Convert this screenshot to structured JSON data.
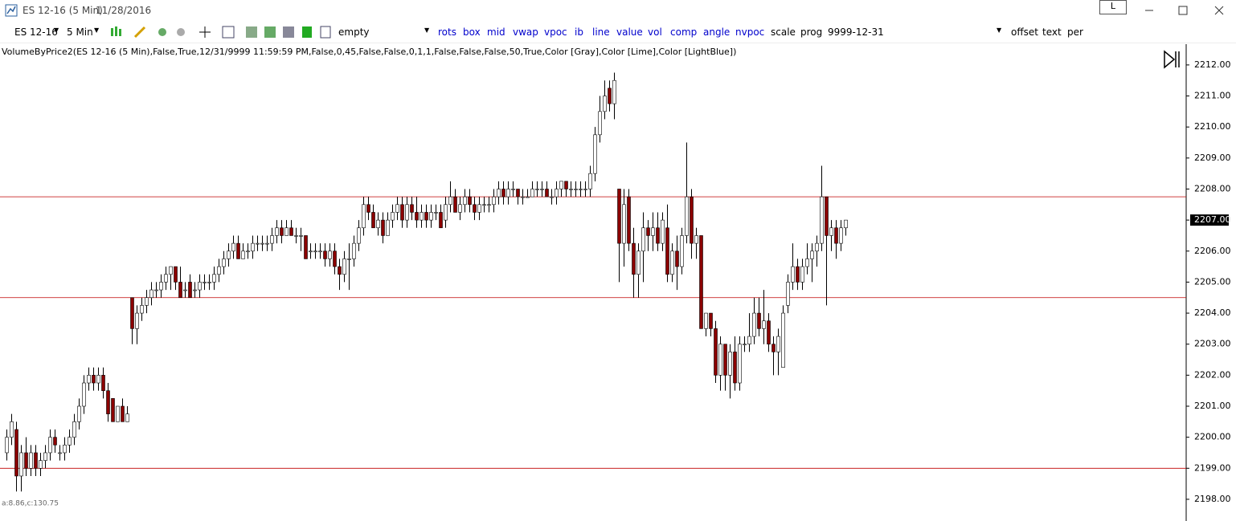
{
  "window": {
    "title": "ES 12-16 (5 Min)",
    "date": "11/28/2016",
    "button": "L"
  },
  "toolbar": {
    "instrument": "ES 12-16",
    "interval": "5 Min",
    "template": "empty",
    "links": [
      "rots",
      "box",
      "mid",
      "vwap",
      "vpoc",
      "ib",
      "line",
      "value",
      "vol",
      "comp",
      "angle",
      "nvpoc"
    ],
    "plain": [
      "scale",
      "prog",
      "9999-12-31"
    ],
    "right": [
      "offset",
      "text",
      "per"
    ]
  },
  "chart_data": {
    "type": "candlestick",
    "indicator": "VolumeByPrice2(ES 12-16 (5 Min),False,True,12/31/9999 11:59:59 PM,False,0,45,False,False,0,1,1,False,False,False,50,True,Color [Gray],Color [Lime],Color [LightBlue])",
    "footer": "a:8.86,c:130.75",
    "ylim": [
      2197.3,
      2212.67
    ],
    "yticks": [
      {
        "value": 2198,
        "label": "2198.00"
      },
      {
        "value": 2199,
        "label": "2199.00"
      },
      {
        "value": 2200,
        "label": "2200.00"
      },
      {
        "value": 2201,
        "label": "2201.00"
      },
      {
        "value": 2202,
        "label": "2202.00"
      },
      {
        "value": 2203,
        "label": "2203.00"
      },
      {
        "value": 2204,
        "label": "2204.00"
      },
      {
        "value": 2205,
        "label": "2205.00"
      },
      {
        "value": 2206,
        "label": "2206.00"
      },
      {
        "value": 2207,
        "label": "2207.00"
      },
      {
        "value": 2208,
        "label": "2208.00"
      },
      {
        "value": 2209,
        "label": "2209.00"
      },
      {
        "value": 2210,
        "label": "2210.00"
      },
      {
        "value": 2211,
        "label": "2211.00"
      },
      {
        "value": 2212,
        "label": "2212.00"
      }
    ],
    "last_price": {
      "value": 2207,
      "label": "2207.00"
    },
    "levels": [
      2207.75,
      2204.5,
      2199
    ],
    "up_color": "#ffffff",
    "down_color": "#8b0000",
    "level_color": "#c00000",
    "candles": [
      [
        2199.5,
        2200.25,
        2199.25,
        2200
      ],
      [
        2200,
        2200.75,
        2199.75,
        2200.5
      ],
      [
        2200.25,
        2200.5,
        2198.25,
        2198.75
      ],
      [
        2198.75,
        2199.75,
        2198.25,
        2199.5
      ],
      [
        2199.5,
        2200,
        2198.75,
        2199
      ],
      [
        2199,
        2199.75,
        2198.75,
        2199.5
      ],
      [
        2199.5,
        2199.75,
        2198.75,
        2199
      ],
      [
        2199,
        2199.5,
        2198.75,
        2199.25
      ],
      [
        2199.25,
        2199.75,
        2199,
        2199.5
      ],
      [
        2199.5,
        2200.25,
        2199.25,
        2200
      ],
      [
        2200,
        2200.25,
        2199.5,
        2199.75
      ],
      [
        2199.5,
        2199.75,
        2199.25,
        2199.5
      ],
      [
        2199.5,
        2200,
        2199.25,
        2199.75
      ],
      [
        2199.75,
        2200.25,
        2199.5,
        2200
      ],
      [
        2200,
        2200.75,
        2199.75,
        2200.5
      ],
      [
        2200.5,
        2201.25,
        2200.25,
        2201
      ],
      [
        2201,
        2202,
        2200.75,
        2201.75
      ],
      [
        2201.75,
        2202.25,
        2201.5,
        2202
      ],
      [
        2202,
        2202.25,
        2201.5,
        2201.75
      ],
      [
        2201.75,
        2202.25,
        2201.5,
        2202
      ],
      [
        2202,
        2202.25,
        2201.25,
        2201.5
      ],
      [
        2201.5,
        2201.75,
        2200.5,
        2200.75
      ],
      [
        2201.25,
        2201.25,
        2200.5,
        2200.5
      ],
      [
        2200.5,
        2201,
        2200.5,
        2201
      ],
      [
        2201,
        2201.25,
        2200.5,
        2200.5
      ],
      [
        2200.5,
        2201,
        2200.5,
        2200.75
      ],
      [
        2204.5,
        2204.5,
        2203,
        2203.5
      ],
      [
        2203.5,
        2204.25,
        2203,
        2204
      ],
      [
        2204,
        2204.5,
        2203.75,
        2204.25
      ],
      [
        2204.25,
        2204.75,
        2204,
        2204.5
      ],
      [
        2204.5,
        2205,
        2204.25,
        2204.75
      ],
      [
        2204.75,
        2205,
        2204.5,
        2204.75
      ],
      [
        2204.75,
        2205.25,
        2204.5,
        2205
      ],
      [
        2205,
        2205.5,
        2204.75,
        2205.25
      ],
      [
        2205.25,
        2205.5,
        2204.75,
        2205.5
      ],
      [
        2205.5,
        2205.5,
        2204.75,
        2205
      ],
      [
        2205,
        2205.5,
        2204.5,
        2204.5
      ],
      [
        2204.75,
        2205,
        2204.5,
        2204.75
      ],
      [
        2205,
        2205.25,
        2204.5,
        2204.5
      ],
      [
        2204.75,
        2205,
        2204.5,
        2204.75
      ],
      [
        2204.75,
        2205.25,
        2204.5,
        2205
      ],
      [
        2205,
        2205.25,
        2204.75,
        2205
      ],
      [
        2205,
        2205.25,
        2204.75,
        2205
      ],
      [
        2205,
        2205.5,
        2204.75,
        2205.25
      ],
      [
        2205.25,
        2205.75,
        2205,
        2205.5
      ],
      [
        2205.5,
        2206,
        2205.25,
        2205.75
      ],
      [
        2205.75,
        2206.25,
        2205.5,
        2206
      ],
      [
        2206,
        2206.5,
        2205.75,
        2206.25
      ],
      [
        2206.25,
        2206.5,
        2205.75,
        2205.75
      ],
      [
        2205.75,
        2206.25,
        2205.75,
        2206
      ],
      [
        2206,
        2206.25,
        2205.75,
        2206
      ],
      [
        2206,
        2206.5,
        2205.75,
        2206.25
      ],
      [
        2206.25,
        2206.5,
        2206,
        2206.25
      ],
      [
        2206.25,
        2206.5,
        2206,
        2206.25
      ],
      [
        2206.25,
        2206.5,
        2206,
        2206.25
      ],
      [
        2206.25,
        2206.75,
        2206,
        2206.5
      ],
      [
        2206.5,
        2207,
        2206.25,
        2206.75
      ],
      [
        2206.75,
        2207,
        2206.25,
        2206.5
      ],
      [
        2206.5,
        2207,
        2206.5,
        2206.75
      ],
      [
        2206.75,
        2207,
        2206.5,
        2206.5
      ],
      [
        2206.5,
        2206.75,
        2206.25,
        2206.5
      ],
      [
        2206.5,
        2206.75,
        2206,
        2206.5
      ],
      [
        2206.5,
        2206.5,
        2205.75,
        2205.75
      ],
      [
        2206,
        2206.25,
        2205.75,
        2206
      ],
      [
        2206,
        2206.25,
        2205.75,
        2206
      ],
      [
        2206,
        2206.25,
        2205.75,
        2206
      ],
      [
        2206,
        2206.25,
        2205.5,
        2205.75
      ],
      [
        2205.75,
        2206.25,
        2205.5,
        2206
      ],
      [
        2206,
        2206.25,
        2205.25,
        2205.5
      ],
      [
        2205.5,
        2205.75,
        2204.75,
        2205.25
      ],
      [
        2205.25,
        2206,
        2205,
        2205.75
      ],
      [
        2205.75,
        2206.25,
        2204.75,
        2205.75
      ],
      [
        2205.75,
        2206.5,
        2205.5,
        2206.25
      ],
      [
        2206.25,
        2207,
        2206,
        2206.75
      ],
      [
        2206.75,
        2207.75,
        2206.5,
        2207.5
      ],
      [
        2207.5,
        2207.75,
        2207,
        2207.25
      ],
      [
        2207.25,
        2207.5,
        2206.75,
        2206.75
      ],
      [
        2206.75,
        2207.25,
        2206.5,
        2207
      ],
      [
        2207,
        2207.25,
        2206.25,
        2206.5
      ],
      [
        2206.5,
        2207.25,
        2206.5,
        2207
      ],
      [
        2207,
        2207.5,
        2206.75,
        2207.25
      ],
      [
        2207.25,
        2207.75,
        2207,
        2207.5
      ],
      [
        2207.5,
        2207.75,
        2206.75,
        2207
      ],
      [
        2207,
        2207.75,
        2206.75,
        2207.5
      ],
      [
        2207.5,
        2207.75,
        2207,
        2207.25
      ],
      [
        2207.25,
        2207.75,
        2206.75,
        2207
      ],
      [
        2207,
        2207.5,
        2206.75,
        2207.25
      ],
      [
        2207.25,
        2207.5,
        2206.75,
        2207
      ],
      [
        2207,
        2207.5,
        2206.75,
        2207.25
      ],
      [
        2207.25,
        2207.5,
        2207,
        2207.25
      ],
      [
        2207.25,
        2207.5,
        2206.75,
        2206.75
      ],
      [
        2207,
        2207.75,
        2206.75,
        2207.5
      ],
      [
        2207.5,
        2208.25,
        2207.25,
        2207.75
      ],
      [
        2207.75,
        2208,
        2207.25,
        2207.25
      ],
      [
        2207.25,
        2207.75,
        2207,
        2207.5
      ],
      [
        2207.5,
        2208,
        2207.25,
        2207.75
      ],
      [
        2207.75,
        2208,
        2207.25,
        2207.5
      ],
      [
        2207.5,
        2207.75,
        2207,
        2207.25
      ],
      [
        2207.25,
        2207.75,
        2207,
        2207.5
      ],
      [
        2207.5,
        2207.75,
        2207.25,
        2207.5
      ],
      [
        2207.5,
        2207.75,
        2207.25,
        2207.5
      ],
      [
        2207.5,
        2208,
        2207.25,
        2207.75
      ],
      [
        2207.75,
        2208.25,
        2207.5,
        2208
      ],
      [
        2208,
        2208.25,
        2207.5,
        2207.75
      ],
      [
        2207.75,
        2208.25,
        2207.5,
        2208
      ],
      [
        2208,
        2208.25,
        2207.75,
        2208
      ],
      [
        2208,
        2208,
        2207.5,
        2207.75
      ],
      [
        2207.75,
        2208,
        2207.5,
        2207.75
      ],
      [
        2207.75,
        2208,
        2207.75,
        2207.75
      ],
      [
        2207.75,
        2208.25,
        2207.75,
        2208
      ],
      [
        2208,
        2208.25,
        2207.75,
        2208
      ],
      [
        2208,
        2208.25,
        2207.75,
        2208
      ],
      [
        2208,
        2208.25,
        2207.75,
        2207.75
      ],
      [
        2207.75,
        2208,
        2207.5,
        2207.75
      ],
      [
        2207.75,
        2208.25,
        2207.5,
        2208
      ],
      [
        2208,
        2208.25,
        2207.75,
        2208.25
      ],
      [
        2208.25,
        2208.25,
        2207.75,
        2208
      ],
      [
        2208,
        2208.25,
        2207.75,
        2208
      ],
      [
        2208,
        2208.25,
        2207.75,
        2208
      ],
      [
        2208,
        2208.25,
        2207.75,
        2208
      ],
      [
        2208,
        2208.25,
        2207.75,
        2208
      ],
      [
        2208,
        2208.75,
        2207.75,
        2208.5
      ],
      [
        2208.5,
        2210,
        2208.25,
        2209.75
      ],
      [
        2209.75,
        2211,
        2209.5,
        2210.5
      ],
      [
        2210.5,
        2211.5,
        2210.25,
        2211
      ],
      [
        2211.25,
        2211.5,
        2210.5,
        2210.75
      ],
      [
        2210.75,
        2211.75,
        2210.25,
        2211.5
      ],
      [
        2208,
        2208,
        2205,
        2206.25
      ],
      [
        2206.25,
        2208,
        2205.5,
        2207.5
      ],
      [
        2207.75,
        2208,
        2206,
        2206.25
      ],
      [
        2206.25,
        2206.75,
        2204.5,
        2205.25
      ],
      [
        2205.25,
        2206.25,
        2204.5,
        2206
      ],
      [
        2206,
        2207.25,
        2205,
        2206.75
      ],
      [
        2206.75,
        2207,
        2206,
        2206.5
      ],
      [
        2206.5,
        2207.25,
        2206,
        2206.75
      ],
      [
        2206.75,
        2207.25,
        2206,
        2206.25
      ],
      [
        2206.25,
        2207.25,
        2206,
        2207
      ],
      [
        2206.75,
        2207.5,
        2205,
        2205.25
      ],
      [
        2205.25,
        2206.25,
        2205,
        2206
      ],
      [
        2206,
        2206.5,
        2204.75,
        2205.5
      ],
      [
        2205.5,
        2206.75,
        2205.25,
        2206.5
      ],
      [
        2206.5,
        2209.5,
        2206.25,
        2207.75
      ],
      [
        2207.75,
        2208,
        2205.75,
        2206.25
      ],
      [
        2206.25,
        2206.75,
        2205.75,
        2206.5
      ],
      [
        2206.5,
        2206.5,
        2203.5,
        2203.5
      ],
      [
        2203.5,
        2204,
        2203.25,
        2204
      ],
      [
        2204,
        2204,
        2203.25,
        2203.5
      ],
      [
        2203.5,
        2203.75,
        2201.75,
        2202
      ],
      [
        2202,
        2203.25,
        2201.5,
        2203
      ],
      [
        2203,
        2203,
        2201.5,
        2202
      ],
      [
        2202,
        2203,
        2201.25,
        2202.75
      ],
      [
        2202.75,
        2203.25,
        2201.5,
        2201.75
      ],
      [
        2201.75,
        2203.25,
        2201.5,
        2203
      ],
      [
        2203,
        2203.25,
        2202.75,
        2203
      ],
      [
        2203,
        2204,
        2202.75,
        2203.25
      ],
      [
        2203.25,
        2204.5,
        2203,
        2204
      ],
      [
        2204,
        2204.5,
        2203.25,
        2203.5
      ],
      [
        2203.5,
        2204.75,
        2203,
        2203.75
      ],
      [
        2203.75,
        2204,
        2202.75,
        2203
      ],
      [
        2203,
        2203.25,
        2202,
        2202.75
      ],
      [
        2202.75,
        2203.5,
        2202,
        2203.25
      ],
      [
        2202.25,
        2204.25,
        2202.25,
        2204
      ],
      [
        2204.25,
        2205.25,
        2204,
        2205
      ],
      [
        2205,
        2206.25,
        2204.75,
        2205.5
      ],
      [
        2205.5,
        2205.75,
        2204.75,
        2205
      ],
      [
        2205,
        2205.75,
        2204.75,
        2205.5
      ],
      [
        2205.5,
        2206.25,
        2205.25,
        2205.75
      ],
      [
        2205.75,
        2206.25,
        2205,
        2206
      ],
      [
        2206,
        2206.5,
        2205.5,
        2206.25
      ],
      [
        2206.25,
        2208.75,
        2206,
        2207.75
      ],
      [
        2207.75,
        2207.75,
        2204.25,
        2206.5
      ],
      [
        2206.5,
        2207,
        2206,
        2206.75
      ],
      [
        2206.75,
        2207,
        2205.75,
        2206.25
      ],
      [
        2206.25,
        2207,
        2206,
        2206.75
      ],
      [
        2206.75,
        2207,
        2206.5,
        2207
      ]
    ]
  }
}
